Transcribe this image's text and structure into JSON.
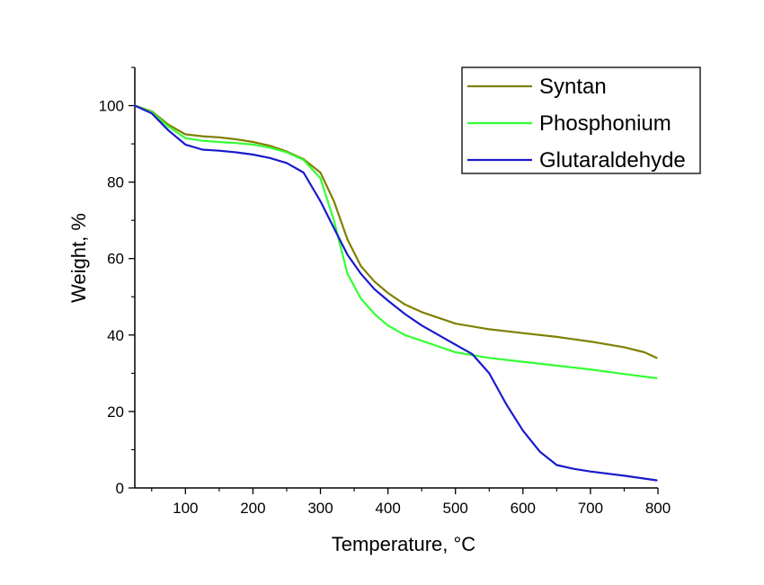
{
  "chart_data": {
    "type": "line",
    "xlabel": "Temperature, °C",
    "ylabel": "Weight, %",
    "xlim": [
      25,
      800
    ],
    "ylim": [
      0,
      110
    ],
    "x_ticks": [
      100,
      200,
      300,
      400,
      500,
      600,
      700,
      800
    ],
    "y_ticks": [
      0,
      20,
      40,
      60,
      80,
      100
    ],
    "x_tick_labels": [
      "100",
      "200",
      "300",
      "400",
      "500",
      "600",
      "700",
      "800"
    ],
    "y_tick_labels": [
      "0",
      "20",
      "40",
      "60",
      "80",
      "100"
    ],
    "grid": false,
    "legend_position": "top-right",
    "series": [
      {
        "name": "Syntan",
        "color": "#808000",
        "x": [
          25,
          50,
          75,
          100,
          125,
          150,
          175,
          200,
          225,
          250,
          275,
          300,
          320,
          340,
          360,
          380,
          400,
          425,
          450,
          500,
          550,
          600,
          650,
          700,
          750,
          780,
          798
        ],
        "y": [
          100,
          98.5,
          95,
          92.5,
          92,
          91.7,
          91.2,
          90.5,
          89.5,
          88,
          86,
          82.5,
          75,
          65,
          58,
          54,
          51,
          48,
          46,
          43,
          41.5,
          40.5,
          39.5,
          38.3,
          36.8,
          35.5,
          34
        ]
      },
      {
        "name": "Phosphonium",
        "color": "#33ff33",
        "x": [
          25,
          50,
          75,
          100,
          125,
          150,
          175,
          200,
          225,
          250,
          275,
          300,
          320,
          340,
          360,
          380,
          400,
          425,
          450,
          500,
          550,
          600,
          650,
          700,
          750,
          798
        ],
        "y": [
          100,
          98.3,
          94.5,
          91.5,
          90.8,
          90.5,
          90.2,
          89.8,
          89,
          87.8,
          85.8,
          81,
          70,
          56,
          49.5,
          45.5,
          42.5,
          40,
          38.5,
          35.5,
          34,
          33,
          32,
          31,
          29.8,
          28.7
        ]
      },
      {
        "name": "Glutaraldehyde",
        "color": "#1a1acc",
        "x": [
          25,
          50,
          75,
          100,
          125,
          150,
          175,
          200,
          225,
          250,
          275,
          300,
          320,
          340,
          360,
          380,
          400,
          425,
          450,
          475,
          500,
          525,
          550,
          575,
          600,
          625,
          650,
          675,
          700,
          750,
          798
        ],
        "y": [
          100,
          98,
          93.5,
          89.8,
          88.5,
          88.2,
          87.8,
          87.2,
          86.3,
          85,
          82.5,
          75,
          68,
          61,
          56,
          52,
          49,
          45.5,
          42.5,
          40,
          37.5,
          35,
          30,
          22,
          15,
          9.5,
          6,
          5,
          4.3,
          3.2,
          2
        ]
      }
    ]
  }
}
